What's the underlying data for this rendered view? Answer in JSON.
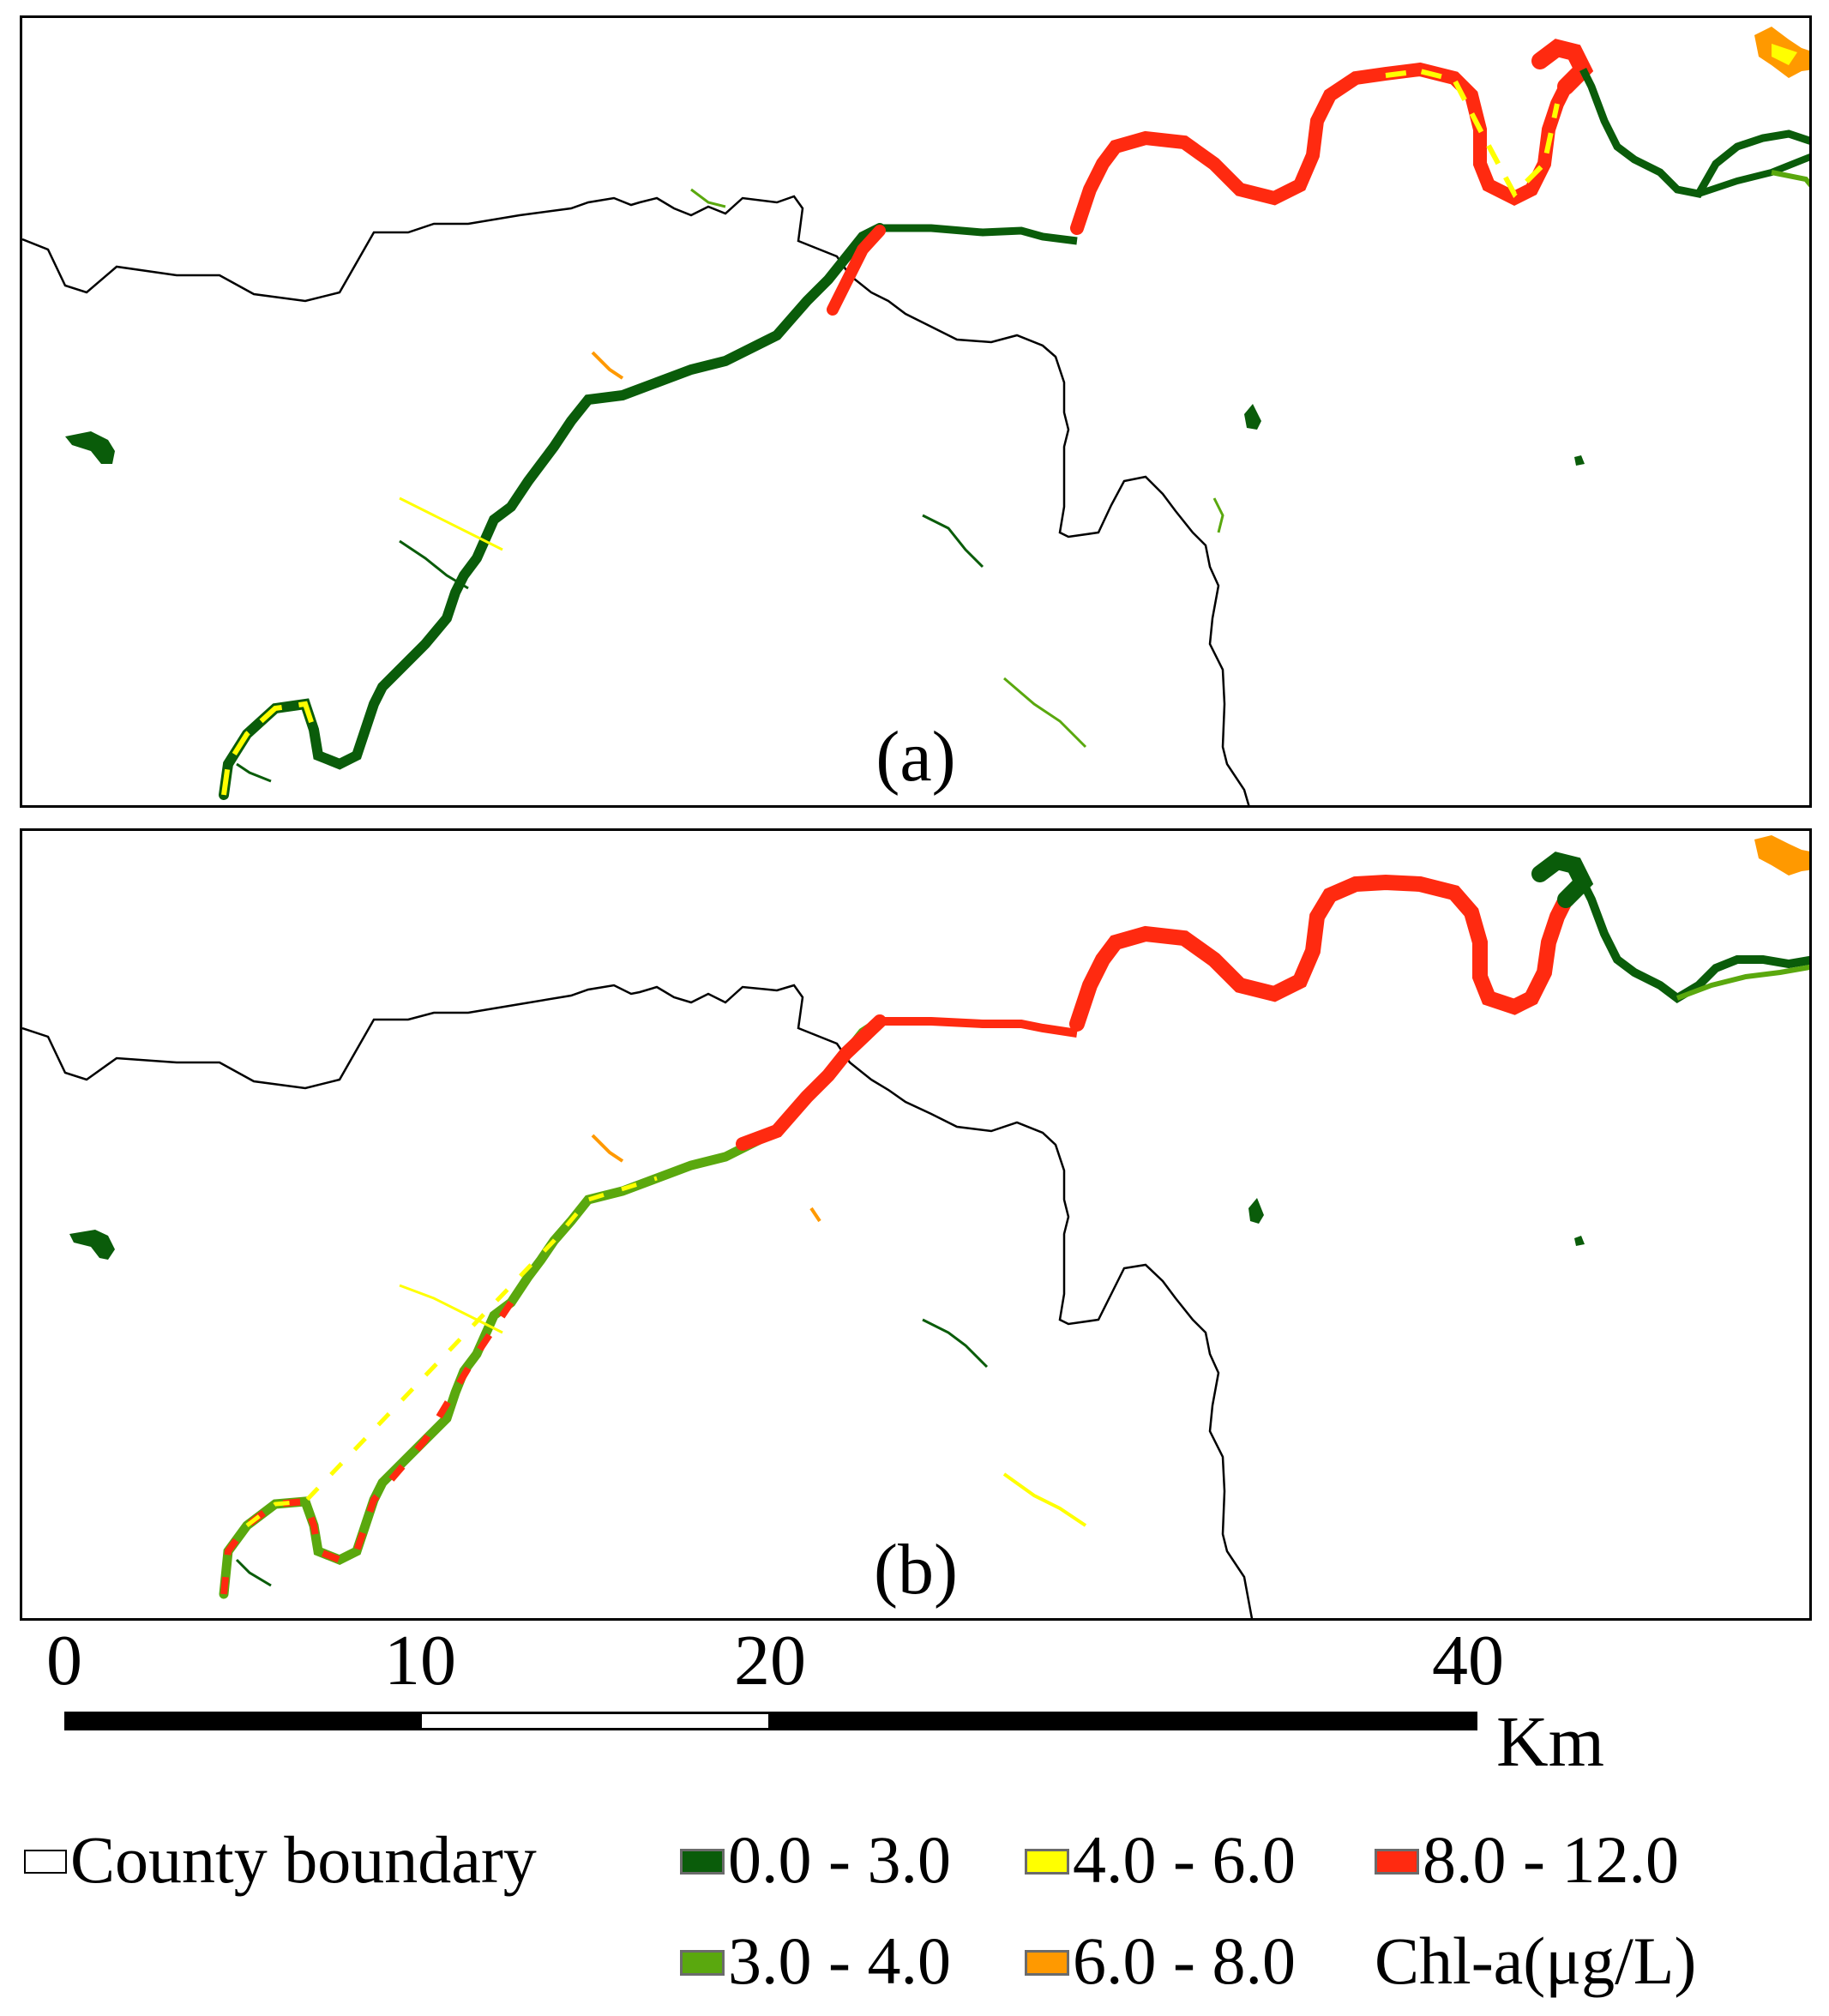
{
  "panels": [
    {
      "id": "a",
      "label": "(a)"
    },
    {
      "id": "b",
      "label": "(b)"
    }
  ],
  "scale": {
    "ticks": [
      "0",
      "10",
      "20",
      "40"
    ],
    "unit": "Km"
  },
  "legend": {
    "boundary_label": "County boundary",
    "classes": [
      {
        "range": "0.0 - 3.0",
        "color": "#0a5c0a"
      },
      {
        "range": "3.0 - 4.0",
        "color": "#5aa80e"
      },
      {
        "range": "4.0 - 6.0",
        "color": "#ffff00"
      },
      {
        "range": "6.0 - 8.0",
        "color": "#ff9900"
      },
      {
        "range": "8.0 - 12.0",
        "color": "#ff2a10"
      }
    ],
    "title": "Chl-a(μg/L)"
  },
  "colors": {
    "boundary": "#000000",
    "dark_green": "#0a5c0a",
    "green": "#5aa80e",
    "yellow": "#ffff00",
    "orange": "#ff9900",
    "red": "#ff2a10"
  }
}
